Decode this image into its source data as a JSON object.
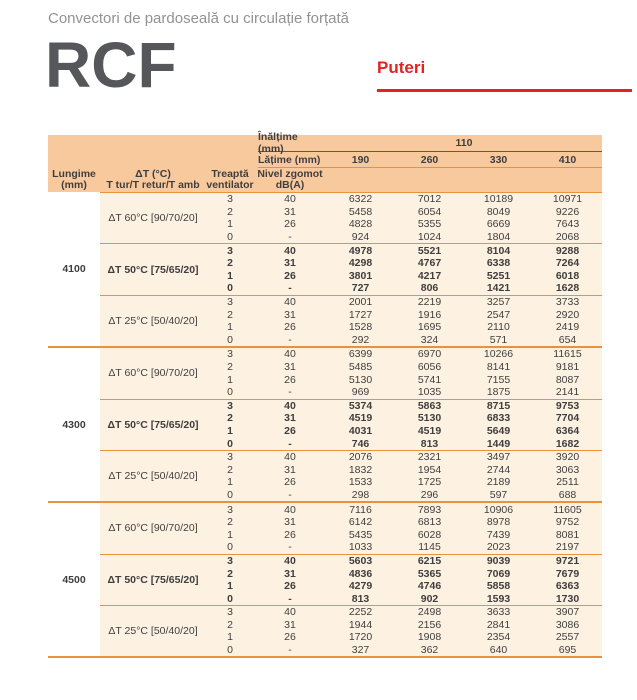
{
  "header": {
    "subtitle": "Convectori de pardoseală cu circulație forțată",
    "product_code": "RCF",
    "section_title": "Puteri"
  },
  "colors": {
    "accent_red": "#e42320",
    "table_header_bg": "#f9c99e",
    "table_body_bg": "#fdf2e2",
    "line_orange": "#e9913c",
    "line_dark": "#5c5c5c",
    "text_dark": "#3f3e3e",
    "subtitle_gray": "#929292",
    "product_code_gray": "#56575a"
  },
  "table": {
    "height_label": "Înălțime (mm)",
    "height_value": "110",
    "width_label": "Lățime (mm)",
    "width_values": [
      "190",
      "260",
      "330",
      "410"
    ],
    "col_headers": {
      "lungime_line1": "Lungime",
      "lungime_line2": "(mm)",
      "dt_line1": "ΔT (°C)",
      "dt_line2": "T tur/T retur/T amb",
      "treapta_line1": "Treaptă",
      "treapta_line2": "ventilator",
      "zgomot_line1": "Nivel zgomot",
      "zgomot_line2": "dB(A)"
    },
    "groups": [
      {
        "lungime": "4100",
        "subgroups": [
          {
            "dt": "ΔT 60°C [90/70/20]",
            "bold": false,
            "rows": [
              {
                "treapta": "3",
                "zgomot": "40",
                "values": [
                  "6322",
                  "7012",
                  "10189",
                  "10971"
                ]
              },
              {
                "treapta": "2",
                "zgomot": "31",
                "values": [
                  "5458",
                  "6054",
                  "8049",
                  "9226"
                ]
              },
              {
                "treapta": "1",
                "zgomot": "26",
                "values": [
                  "4828",
                  "5355",
                  "6669",
                  "7643"
                ]
              },
              {
                "treapta": "0",
                "zgomot": "-",
                "values": [
                  "924",
                  "1024",
                  "1804",
                  "2068"
                ]
              }
            ]
          },
          {
            "dt": "ΔT 50°C [75/65/20]",
            "bold": true,
            "rows": [
              {
                "treapta": "3",
                "zgomot": "40",
                "values": [
                  "4978",
                  "5521",
                  "8104",
                  "9288"
                ]
              },
              {
                "treapta": "2",
                "zgomot": "31",
                "values": [
                  "4298",
                  "4767",
                  "6338",
                  "7264"
                ]
              },
              {
                "treapta": "1",
                "zgomot": "26",
                "values": [
                  "3801",
                  "4217",
                  "5251",
                  "6018"
                ]
              },
              {
                "treapta": "0",
                "zgomot": "-",
                "values": [
                  "727",
                  "806",
                  "1421",
                  "1628"
                ]
              }
            ]
          },
          {
            "dt": "ΔT 25°C [50/40/20]",
            "bold": false,
            "rows": [
              {
                "treapta": "3",
                "zgomot": "40",
                "values": [
                  "2001",
                  "2219",
                  "3257",
                  "3733"
                ]
              },
              {
                "treapta": "2",
                "zgomot": "31",
                "values": [
                  "1727",
                  "1916",
                  "2547",
                  "2920"
                ]
              },
              {
                "treapta": "1",
                "zgomot": "26",
                "values": [
                  "1528",
                  "1695",
                  "2110",
                  "2419"
                ]
              },
              {
                "treapta": "0",
                "zgomot": "-",
                "values": [
                  "292",
                  "324",
                  "571",
                  "654"
                ]
              }
            ]
          }
        ]
      },
      {
        "lungime": "4300",
        "subgroups": [
          {
            "dt": "ΔT 60°C [90/70/20]",
            "bold": false,
            "rows": [
              {
                "treapta": "3",
                "zgomot": "40",
                "values": [
                  "6399",
                  "6970",
                  "10266",
                  "11615"
                ]
              },
              {
                "treapta": "2",
                "zgomot": "31",
                "values": [
                  "5485",
                  "6056",
                  "8141",
                  "9181"
                ]
              },
              {
                "treapta": "1",
                "zgomot": "26",
                "values": [
                  "5130",
                  "5741",
                  "7155",
                  "8087"
                ]
              },
              {
                "treapta": "0",
                "zgomot": "-",
                "values": [
                  "969",
                  "1035",
                  "1875",
                  "2141"
                ]
              }
            ]
          },
          {
            "dt": "ΔT 50°C [75/65/20]",
            "bold": true,
            "rows": [
              {
                "treapta": "3",
                "zgomot": "40",
                "values": [
                  "5374",
                  "5863",
                  "8715",
                  "9753"
                ]
              },
              {
                "treapta": "2",
                "zgomot": "31",
                "values": [
                  "4519",
                  "5130",
                  "6833",
                  "7704"
                ]
              },
              {
                "treapta": "1",
                "zgomot": "26",
                "values": [
                  "4031",
                  "4519",
                  "5649",
                  "6364"
                ]
              },
              {
                "treapta": "0",
                "zgomot": "-",
                "values": [
                  "746",
                  "813",
                  "1449",
                  "1682"
                ]
              }
            ]
          },
          {
            "dt": "ΔT 25°C [50/40/20]",
            "bold": false,
            "rows": [
              {
                "treapta": "3",
                "zgomot": "40",
                "values": [
                  "2076",
                  "2321",
                  "3497",
                  "3920"
                ]
              },
              {
                "treapta": "2",
                "zgomot": "31",
                "values": [
                  "1832",
                  "1954",
                  "2744",
                  "3063"
                ]
              },
              {
                "treapta": "1",
                "zgomot": "26",
                "values": [
                  "1533",
                  "1725",
                  "2189",
                  "2511"
                ]
              },
              {
                "treapta": "0",
                "zgomot": "-",
                "values": [
                  "298",
                  "296",
                  "597",
                  "688"
                ]
              }
            ]
          }
        ]
      },
      {
        "lungime": "4500",
        "subgroups": [
          {
            "dt": "ΔT 60°C [90/70/20]",
            "bold": false,
            "rows": [
              {
                "treapta": "3",
                "zgomot": "40",
                "values": [
                  "7116",
                  "7893",
                  "10906",
                  "11605"
                ]
              },
              {
                "treapta": "2",
                "zgomot": "31",
                "values": [
                  "6142",
                  "6813",
                  "8978",
                  "9752"
                ]
              },
              {
                "treapta": "1",
                "zgomot": "26",
                "values": [
                  "5435",
                  "6028",
                  "7439",
                  "8081"
                ]
              },
              {
                "treapta": "0",
                "zgomot": "-",
                "values": [
                  "1033",
                  "1145",
                  "2023",
                  "2197"
                ]
              }
            ]
          },
          {
            "dt": "ΔT 50°C [75/65/20]",
            "bold": true,
            "rows": [
              {
                "treapta": "3",
                "zgomot": "40",
                "values": [
                  "5603",
                  "6215",
                  "9039",
                  "9721"
                ]
              },
              {
                "treapta": "2",
                "zgomot": "31",
                "values": [
                  "4836",
                  "5365",
                  "7069",
                  "7679"
                ]
              },
              {
                "treapta": "1",
                "zgomot": "26",
                "values": [
                  "4279",
                  "4746",
                  "5858",
                  "6363"
                ]
              },
              {
                "treapta": "0",
                "zgomot": "-",
                "values": [
                  "813",
                  "902",
                  "1593",
                  "1730"
                ]
              }
            ]
          },
          {
            "dt": "ΔT 25°C [50/40/20]",
            "bold": false,
            "rows": [
              {
                "treapta": "3",
                "zgomot": "40",
                "values": [
                  "2252",
                  "2498",
                  "3633",
                  "3907"
                ]
              },
              {
                "treapta": "2",
                "zgomot": "31",
                "values": [
                  "1944",
                  "2156",
                  "2841",
                  "3086"
                ]
              },
              {
                "treapta": "1",
                "zgomot": "26",
                "values": [
                  "1720",
                  "1908",
                  "2354",
                  "2557"
                ]
              },
              {
                "treapta": "0",
                "zgomot": "-",
                "values": [
                  "327",
                  "362",
                  "640",
                  "695"
                ]
              }
            ]
          }
        ]
      }
    ]
  }
}
